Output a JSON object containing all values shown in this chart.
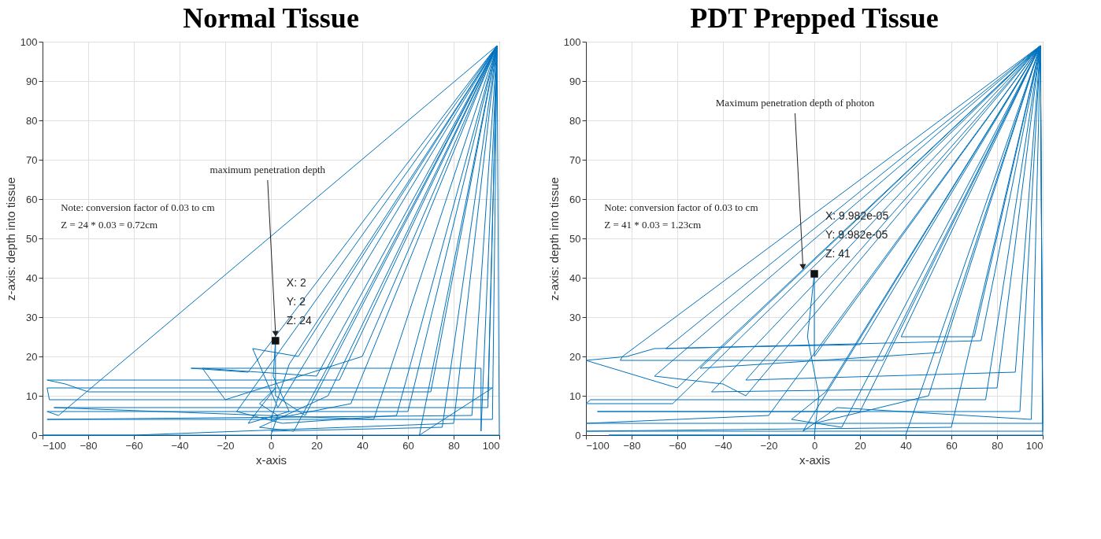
{
  "chart_data": [
    {
      "type": "line",
      "title": "Normal Tissue",
      "xlabel": "x-axis",
      "ylabel": "z-axis: depth into tissue",
      "xlim": [
        -100,
        100
      ],
      "xticks": [
        -100,
        -80,
        -60,
        -40,
        -20,
        0,
        20,
        40,
        60,
        80,
        100
      ],
      "ylim": [
        0,
        100
      ],
      "yticks": [
        0,
        10,
        20,
        30,
        40,
        50,
        60,
        70,
        80,
        90,
        100
      ],
      "grid": true,
      "annotations": [
        {
          "text": "maximum penetration depth",
          "x": 2,
          "y": 26
        },
        {
          "text": "X: 2\nY: 2\nZ: 24",
          "x": 2,
          "y": 24
        },
        "Note: conversion factor of 0.03 to cm\nZ = 24 * 0.03 = 0.72cm"
      ],
      "series": [
        {
          "color": "#0072bd",
          "x": [
            0,
            3,
            -5,
            2,
            -10,
            8,
            1,
            2,
            2,
            15,
            99,
            20,
            -30,
            -20,
            40,
            99,
            60,
            -98,
            -93,
            99,
            30,
            -98,
            -90,
            -80,
            70,
            99,
            45,
            -95,
            95,
            99,
            80,
            -60,
            -100,
            100,
            99,
            65,
            97,
            -98,
            -97,
            95,
            99,
            92,
            92,
            -35,
            -10,
            99,
            25,
            -5,
            10,
            99,
            55,
            5,
            -15,
            99,
            35,
            0,
            8,
            99,
            88,
            -98,
            97,
            99,
            12,
            -8,
            3,
            99,
            75,
            0
          ],
          "values": [
            0,
            5,
            8,
            12,
            3,
            6,
            15,
            24,
            10,
            5,
            99,
            15,
            17,
            9,
            20,
            99,
            6,
            6,
            5,
            99,
            14,
            14,
            13,
            11,
            11,
            99,
            4,
            7,
            7,
            99,
            3,
            0,
            0,
            0,
            99,
            0,
            12,
            12,
            9,
            9,
            99,
            1,
            17,
            17,
            16,
            99,
            10,
            2,
            1,
            99,
            5,
            3,
            6,
            99,
            8,
            4,
            18,
            99,
            5,
            4,
            4,
            99,
            20,
            22,
            7,
            99,
            2,
            1
          ]
        }
      ]
    },
    {
      "type": "line",
      "title": "PDT Prepped Tissue",
      "xlabel": "x-axis",
      "ylabel": "z-axis: depth into tissue",
      "xlim": [
        -100,
        100
      ],
      "xticks": [
        -100,
        -80,
        -60,
        -40,
        -20,
        0,
        20,
        40,
        60,
        80,
        100
      ],
      "ylim": [
        0,
        100
      ],
      "yticks": [
        0,
        10,
        20,
        30,
        40,
        50,
        60,
        70,
        80,
        90,
        100
      ],
      "grid": true,
      "annotations": [
        {
          "text": "Maximum penetration depth of photon",
          "x": -5,
          "y": 43
        },
        {
          "text": "X: 9.982e-05\nY: 9.982e-05\nZ: 41",
          "x": 0,
          "y": 41
        },
        "Note: conversion factor of 0.03 to cm\nZ = 41 * 0.03 = 1.23cm"
      ],
      "series": [
        {
          "color": "#0072bd",
          "x": [
            0,
            2,
            -3,
            0,
            0,
            99,
            -60,
            -100,
            -82,
            -70,
            20,
            99,
            -70,
            -40,
            -30,
            99,
            -50,
            55,
            99,
            -62,
            -100,
            -98,
            75,
            99,
            -20,
            -100,
            100,
            99,
            60,
            -100,
            100,
            99,
            -30,
            88,
            99,
            20,
            -95,
            90,
            99,
            70,
            38,
            99,
            73,
            -65,
            99,
            5,
            -10,
            12,
            99,
            40,
            -90,
            100,
            99,
            -45,
            80,
            99,
            30,
            -85,
            -84,
            99,
            95,
            10,
            -5,
            99,
            50,
            0
          ],
          "values": [
            0,
            10,
            25,
            41,
            20,
            99,
            12,
            19,
            20,
            22,
            23,
            99,
            15,
            13,
            10,
            99,
            17,
            21,
            99,
            8,
            8,
            9,
            9,
            99,
            5,
            3,
            3,
            99,
            2,
            1,
            1,
            99,
            14,
            16,
            99,
            6,
            6,
            6,
            99,
            25,
            25,
            99,
            24,
            22,
            99,
            11,
            4,
            2,
            99,
            0,
            0,
            0,
            99,
            11,
            12,
            99,
            19,
            19,
            20,
            99,
            4,
            7,
            1,
            99,
            10,
            3
          ]
        }
      ]
    }
  ]
}
